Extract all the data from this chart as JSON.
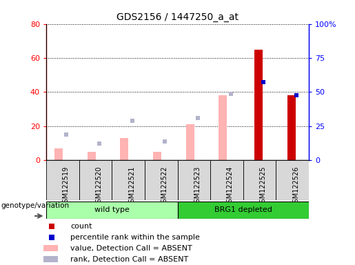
{
  "title": "GDS2156 / 1447250_a_at",
  "samples": [
    "GSM122519",
    "GSM122520",
    "GSM122521",
    "GSM122522",
    "GSM122523",
    "GSM122524",
    "GSM122525",
    "GSM122526"
  ],
  "count_values": [
    0,
    0,
    0,
    0,
    0,
    0,
    65,
    38
  ],
  "percentile_rank": [
    0,
    0,
    0,
    0,
    0,
    0,
    46,
    38
  ],
  "absent_value": [
    7,
    5,
    13,
    5,
    21,
    38,
    0,
    0
  ],
  "absent_rank": [
    15,
    10,
    23,
    11,
    25,
    39,
    0,
    0
  ],
  "ylim_left": [
    0,
    80
  ],
  "yticks_left": [
    0,
    20,
    40,
    60,
    80
  ],
  "ytick_right_labels": [
    "0",
    "25",
    "50",
    "75",
    "100%"
  ],
  "bar_width": 0.3,
  "count_color": "#cc0000",
  "percentile_color": "#0000cc",
  "absent_value_color": "#ffb3b3",
  "absent_rank_color": "#b3b3cc",
  "group1_label": "wild type",
  "group2_label": "BRG1 depleted",
  "group1_color": "#aaffaa",
  "group2_color": "#33cc33",
  "group_label": "genotype/variation",
  "legend_items": [
    {
      "label": "count",
      "color": "#cc0000",
      "type": "square"
    },
    {
      "label": "percentile rank within the sample",
      "color": "#0000cc",
      "type": "square"
    },
    {
      "label": "value, Detection Call = ABSENT",
      "color": "#ffb3b3",
      "type": "rect"
    },
    {
      "label": "rank, Detection Call = ABSENT",
      "color": "#b3b3cc",
      "type": "rect"
    }
  ],
  "plot_bg_color": "#ffffff",
  "fig_bg_color": "#ffffff"
}
